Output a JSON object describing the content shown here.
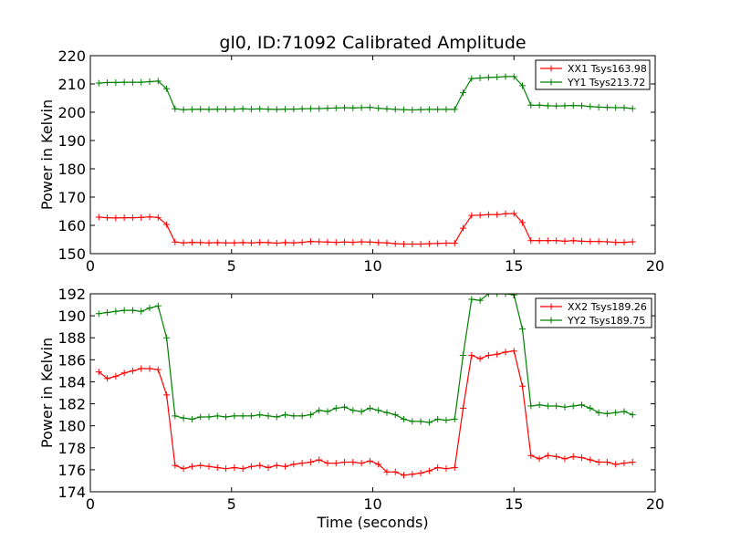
{
  "chart_data": [
    {
      "type": "line",
      "title": "gl0, ID:71092 Calibrated Amplitude",
      "xlabel": "",
      "ylabel": "Power in Kelvin",
      "xlim": [
        0,
        20
      ],
      "ylim": [
        150,
        220
      ],
      "x_ticks": [
        0,
        5,
        10,
        15,
        20
      ],
      "y_ticks": [
        150,
        160,
        170,
        180,
        190,
        200,
        210,
        220
      ],
      "grid": false,
      "legend_position": "top-right",
      "x": [
        0.3,
        0.6,
        0.9,
        1.2,
        1.5,
        1.8,
        2.1,
        2.4,
        2.7,
        3.0,
        3.3,
        3.6,
        3.9,
        4.2,
        4.5,
        4.8,
        5.1,
        5.4,
        5.7,
        6.0,
        6.3,
        6.6,
        6.9,
        7.2,
        7.5,
        7.8,
        8.1,
        8.4,
        8.7,
        9.0,
        9.3,
        9.6,
        9.9,
        10.2,
        10.5,
        10.8,
        11.1,
        11.4,
        11.7,
        12.0,
        12.3,
        12.6,
        12.9,
        13.2,
        13.5,
        13.8,
        14.1,
        14.4,
        14.7,
        15.0,
        15.3,
        15.6,
        15.9,
        16.2,
        16.5,
        16.8,
        17.1,
        17.4,
        17.7,
        18.0,
        18.3,
        18.6,
        18.9,
        19.2
      ],
      "series": [
        {
          "name": "XX1 Tsys163.98",
          "color": "#ff0000",
          "values": [
            162.9,
            162.7,
            162.6,
            162.7,
            162.7,
            162.8,
            163.0,
            162.8,
            160.3,
            154.1,
            153.8,
            154.0,
            153.9,
            153.8,
            153.9,
            153.8,
            153.8,
            153.9,
            153.8,
            154.0,
            153.9,
            153.7,
            153.9,
            153.8,
            154.0,
            154.3,
            154.2,
            154.1,
            154.0,
            154.1,
            154.0,
            154.2,
            154.1,
            153.9,
            153.8,
            153.5,
            153.4,
            153.4,
            153.4,
            153.5,
            153.6,
            153.7,
            153.7,
            159.0,
            163.5,
            163.6,
            163.8,
            163.8,
            164.1,
            164.2,
            161.0,
            154.6,
            154.6,
            154.6,
            154.6,
            154.4,
            154.6,
            154.4,
            154.3,
            154.3,
            154.2,
            154.0,
            154.0,
            154.2
          ]
        },
        {
          "name": "YY1 Tsys213.72",
          "color": "#008000",
          "values": [
            210.3,
            210.5,
            210.5,
            210.6,
            210.6,
            210.6,
            210.8,
            211.0,
            208.3,
            201.2,
            200.9,
            201.0,
            201.1,
            201.0,
            201.1,
            201.1,
            201.1,
            201.2,
            201.1,
            201.2,
            201.1,
            201.0,
            201.1,
            201.1,
            201.2,
            201.3,
            201.3,
            201.4,
            201.5,
            201.6,
            201.5,
            201.6,
            201.7,
            201.4,
            201.2,
            201.0,
            200.9,
            200.8,
            200.9,
            201.0,
            201.0,
            201.0,
            201.0,
            206.9,
            211.9,
            212.1,
            212.3,
            212.4,
            212.6,
            212.6,
            209.4,
            202.5,
            202.5,
            202.3,
            202.2,
            202.3,
            202.4,
            202.3,
            202.0,
            201.8,
            201.7,
            201.6,
            201.6,
            201.3
          ]
        }
      ]
    },
    {
      "type": "line",
      "title": "",
      "xlabel": "Time (seconds)",
      "ylabel": "Power in Kelvin",
      "xlim": [
        0,
        20
      ],
      "ylim": [
        174,
        192
      ],
      "x_ticks": [
        0,
        5,
        10,
        15,
        20
      ],
      "y_ticks": [
        174,
        176,
        178,
        180,
        182,
        184,
        186,
        188,
        190,
        192
      ],
      "grid": false,
      "legend_position": "top-right",
      "x": [
        0.3,
        0.6,
        0.9,
        1.2,
        1.5,
        1.8,
        2.1,
        2.4,
        2.7,
        3.0,
        3.3,
        3.6,
        3.9,
        4.2,
        4.5,
        4.8,
        5.1,
        5.4,
        5.7,
        6.0,
        6.3,
        6.6,
        6.9,
        7.2,
        7.5,
        7.8,
        8.1,
        8.4,
        8.7,
        9.0,
        9.3,
        9.6,
        9.9,
        10.2,
        10.5,
        10.8,
        11.1,
        11.4,
        11.7,
        12.0,
        12.3,
        12.6,
        12.9,
        13.2,
        13.5,
        13.8,
        14.1,
        14.4,
        14.7,
        15.0,
        15.3,
        15.6,
        15.9,
        16.2,
        16.5,
        16.8,
        17.1,
        17.4,
        17.7,
        18.0,
        18.3,
        18.6,
        18.9,
        19.2
      ],
      "series": [
        {
          "name": "XX2 Tsys189.26",
          "color": "#ff0000",
          "values": [
            184.9,
            184.3,
            184.5,
            184.8,
            185.0,
            185.2,
            185.2,
            185.1,
            182.8,
            176.4,
            176.1,
            176.3,
            176.4,
            176.3,
            176.2,
            176.1,
            176.2,
            176.1,
            176.3,
            176.4,
            176.2,
            176.4,
            176.3,
            176.5,
            176.6,
            176.7,
            176.9,
            176.6,
            176.6,
            176.7,
            176.7,
            176.6,
            176.8,
            176.5,
            175.8,
            175.8,
            175.5,
            175.6,
            175.7,
            175.9,
            176.2,
            176.1,
            176.2,
            181.6,
            186.4,
            186.1,
            186.4,
            186.5,
            186.7,
            186.8,
            183.6,
            177.3,
            177.0,
            177.3,
            177.2,
            177.0,
            177.2,
            177.1,
            176.9,
            176.7,
            176.7,
            176.5,
            176.6,
            176.7
          ]
        },
        {
          "name": "YY2 Tsys189.75",
          "color": "#008000",
          "values": [
            190.2,
            190.3,
            190.4,
            190.5,
            190.5,
            190.4,
            190.7,
            190.9,
            188.0,
            180.9,
            180.7,
            180.6,
            180.8,
            180.8,
            180.9,
            180.8,
            180.9,
            180.9,
            180.9,
            181.0,
            180.9,
            180.8,
            181.0,
            180.9,
            180.9,
            181.0,
            181.4,
            181.3,
            181.6,
            181.7,
            181.4,
            181.3,
            181.6,
            181.4,
            181.2,
            181.0,
            180.6,
            180.4,
            180.4,
            180.3,
            180.6,
            180.5,
            180.6,
            186.4,
            191.5,
            191.4,
            192.0,
            192.0,
            192.0,
            191.9,
            188.8,
            181.8,
            181.9,
            181.8,
            181.8,
            181.7,
            181.8,
            181.9,
            181.6,
            181.2,
            181.1,
            181.2,
            181.3,
            181.0
          ]
        }
      ]
    }
  ]
}
